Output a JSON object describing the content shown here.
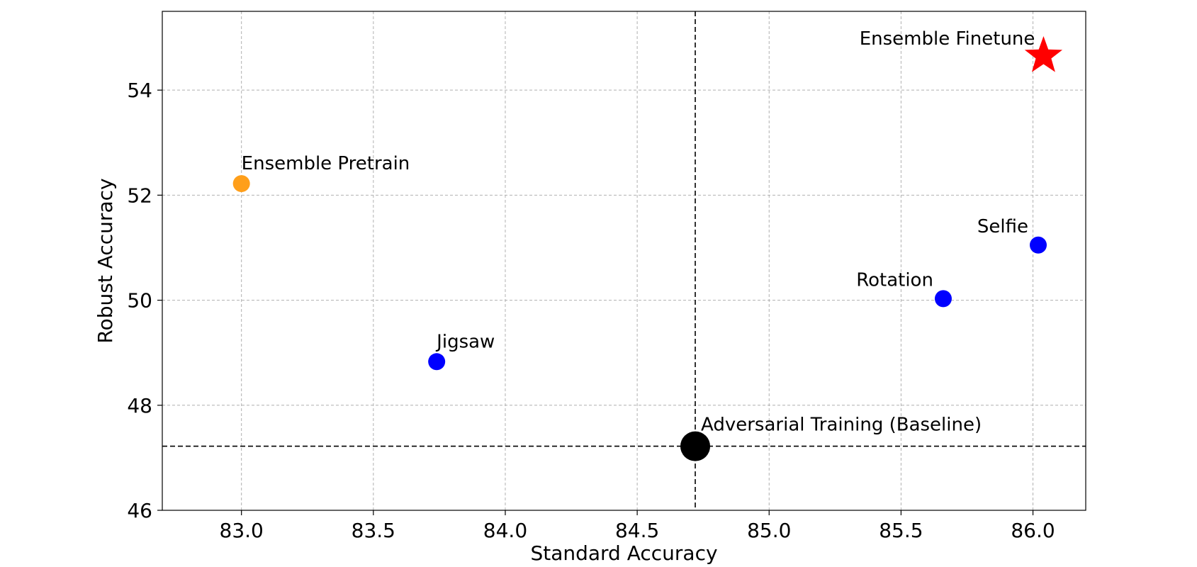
{
  "chart_data": {
    "type": "scatter",
    "title": "",
    "xlabel": "Standard Accuracy",
    "ylabel": "Robust Accuracy",
    "xlim": [
      82.7,
      86.2
    ],
    "ylim": [
      46,
      55.5
    ],
    "xticks": [
      83.0,
      83.5,
      84.0,
      84.5,
      85.0,
      85.5,
      86.0
    ],
    "xtick_labels": [
      "83.0",
      "83.5",
      "84.0",
      "84.5",
      "85.0",
      "85.5",
      "86.0"
    ],
    "yticks": [
      46,
      48,
      50,
      52,
      54
    ],
    "ytick_labels": [
      "46",
      "48",
      "50",
      "52",
      "54"
    ],
    "grid": true,
    "reference_lines": {
      "x": 84.72,
      "y": 47.22
    },
    "points": [
      {
        "label": "Ensemble Finetune",
        "x": 86.04,
        "y": 54.65,
        "color": "#ff0000",
        "marker": "star",
        "size": "large",
        "label_position": "above-left"
      },
      {
        "label": "Ensemble Pretrain",
        "x": 83.0,
        "y": 52.22,
        "color": "#ff9f1a",
        "marker": "circle",
        "size": "medium",
        "label_position": "above-right"
      },
      {
        "label": "Selfie",
        "x": 86.02,
        "y": 51.05,
        "color": "#0000ff",
        "marker": "circle",
        "size": "medium",
        "label_position": "above-left"
      },
      {
        "label": "Rotation",
        "x": 85.66,
        "y": 50.03,
        "color": "#0000ff",
        "marker": "circle",
        "size": "medium",
        "label_position": "above-left"
      },
      {
        "label": "Jigsaw",
        "x": 83.74,
        "y": 48.83,
        "color": "#0000ff",
        "marker": "circle",
        "size": "medium",
        "label_position": "above-right"
      },
      {
        "label": "Adversarial Training (Baseline)",
        "x": 84.72,
        "y": 47.22,
        "color": "#000000",
        "marker": "circle",
        "size": "large",
        "label_position": "above-right"
      }
    ]
  }
}
